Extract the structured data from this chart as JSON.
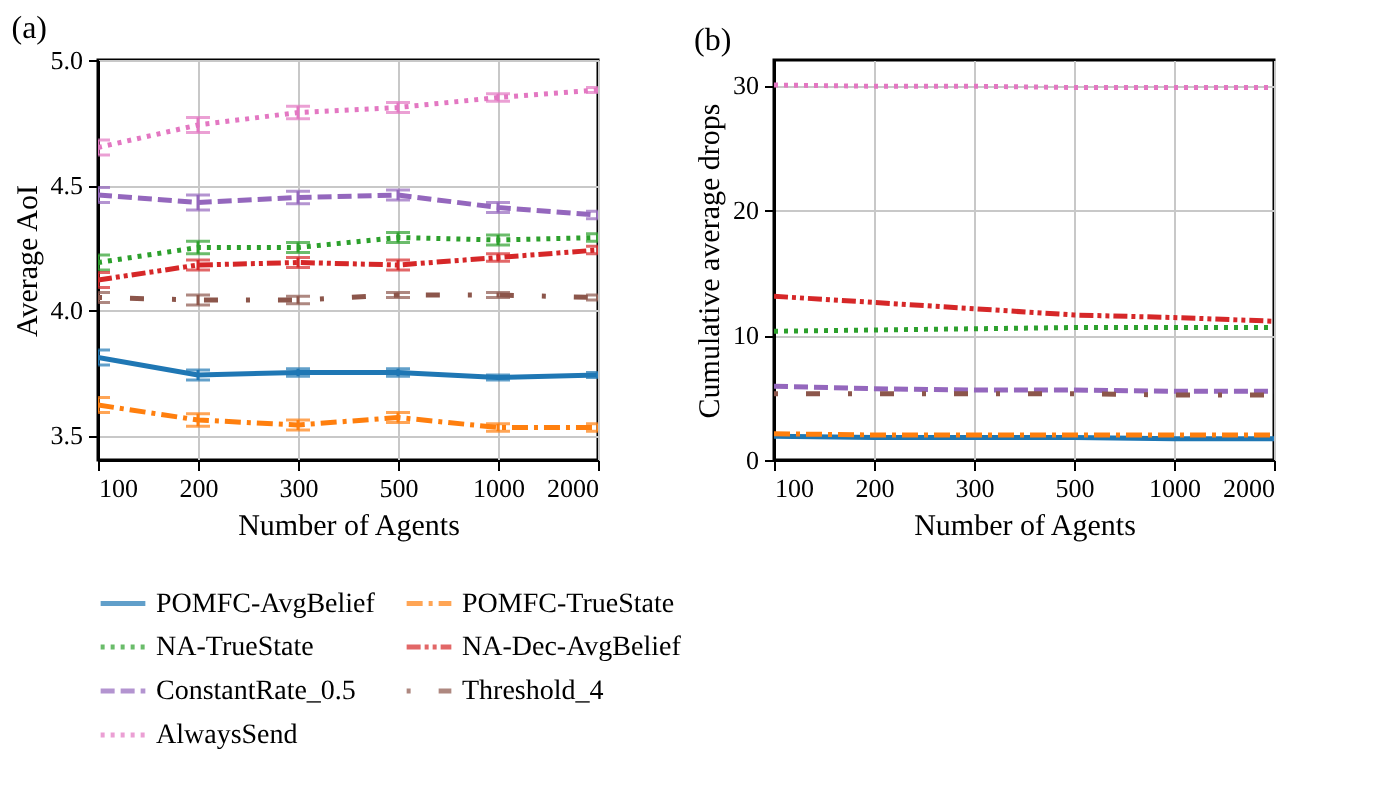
{
  "chart_data": [
    {
      "type": "line",
      "title": "(a)",
      "xlabel": "Number of Agents",
      "ylabel": "Average AoI",
      "categories": [
        "100",
        "200",
        "300",
        "500",
        "1000",
        "2000"
      ],
      "ylim": [
        3.4,
        5.0
      ],
      "yticks": [
        {
          "value": 3.5,
          "label": "3.5"
        },
        {
          "value": 4.0,
          "label": "4.0"
        },
        4.5,
        {
          "value": 5.0,
          "label": "5.0"
        }
      ],
      "grid": true,
      "legend": "bottom",
      "marker": "none",
      "series": [
        {
          "name": "POMFC-AvgBelief",
          "color": "#1f77b4",
          "line_style": "solid",
          "values": [
            3.81,
            3.74,
            3.75,
            3.75,
            3.73,
            3.74
          ],
          "errors": [
            0.03,
            0.02,
            0.015,
            0.015,
            0.01,
            0.01
          ]
        },
        {
          "name": "POMFC-TrueState",
          "color": "#ff7f0e",
          "line_style": "dashdot",
          "values": [
            3.62,
            3.56,
            3.54,
            3.57,
            3.53,
            3.53
          ],
          "errors": [
            0.03,
            0.025,
            0.02,
            0.02,
            0.015,
            0.015
          ]
        },
        {
          "name": "NA-TrueState",
          "color": "#2ca02c",
          "line_style": "dotted",
          "values": [
            4.19,
            4.25,
            4.25,
            4.29,
            4.28,
            4.29
          ],
          "errors": [
            0.03,
            0.025,
            0.02,
            0.02,
            0.02,
            0.015
          ]
        },
        {
          "name": "NA-Dec-AvgBelief",
          "color": "#d62728",
          "line_style": "dashdotdot",
          "values": [
            4.12,
            4.18,
            4.19,
            4.18,
            4.21,
            4.24
          ],
          "errors": [
            0.03,
            0.02,
            0.02,
            0.02,
            0.015,
            0.015
          ]
        },
        {
          "name": "ConstantRate_0.5",
          "color": "#9467bd",
          "line_style": "dashed",
          "values": [
            4.46,
            4.43,
            4.45,
            4.46,
            4.41,
            4.38
          ],
          "errors": [
            0.03,
            0.03,
            0.025,
            0.02,
            0.02,
            0.015
          ]
        },
        {
          "name": "Threshold_4",
          "color": "#8c564b",
          "line_style": "loosedashdot",
          "values": [
            4.05,
            4.04,
            4.04,
            4.06,
            4.06,
            4.05
          ],
          "errors": [
            0.02,
            0.02,
            0.015,
            0.01,
            0.01,
            0.01
          ]
        },
        {
          "name": "AlwaysSend",
          "color": "#e377c2",
          "line_style": "dotted",
          "values": [
            4.65,
            4.74,
            4.79,
            4.81,
            4.85,
            4.88
          ],
          "errors": [
            0.03,
            0.03,
            0.025,
            0.02,
            0.015,
            0.01
          ]
        }
      ]
    },
    {
      "type": "line",
      "title": "(b)",
      "xlabel": "Number of Agents",
      "ylabel": "Cumulative average drops",
      "categories": [
        "100",
        "200",
        "300",
        "500",
        "1000",
        "2000"
      ],
      "ylim": [
        0,
        32
      ],
      "yticks": [
        0,
        10,
        20,
        30
      ],
      "grid": true,
      "marker": "none",
      "series": [
        {
          "name": "POMFC-AvgBelief",
          "color": "#1f77b4",
          "line_style": "solid",
          "values": [
            1.9,
            1.8,
            1.8,
            1.8,
            1.7,
            1.7
          ]
        },
        {
          "name": "POMFC-TrueState",
          "color": "#ff7f0e",
          "line_style": "dashdot",
          "values": [
            2.1,
            2.0,
            2.0,
            2.0,
            2.0,
            2.0
          ]
        },
        {
          "name": "NA-TrueState",
          "color": "#2ca02c",
          "line_style": "dotted",
          "values": [
            10.3,
            10.4,
            10.5,
            10.6,
            10.6,
            10.6
          ]
        },
        {
          "name": "NA-Dec-AvgBelief",
          "color": "#d62728",
          "line_style": "dashdotdot",
          "values": [
            13.1,
            12.6,
            12.1,
            11.6,
            11.4,
            11.1
          ]
        },
        {
          "name": "ConstantRate_0.5",
          "color": "#9467bd",
          "line_style": "dashed",
          "values": [
            5.9,
            5.7,
            5.6,
            5.6,
            5.5,
            5.5
          ]
        },
        {
          "name": "Threshold_4",
          "color": "#8c564b",
          "line_style": "loosedashdot",
          "values": [
            5.3,
            5.3,
            5.3,
            5.3,
            5.2,
            5.2
          ]
        },
        {
          "name": "AlwaysSend",
          "color": "#e377c2",
          "line_style": "dotted",
          "values": [
            30.0,
            29.9,
            29.9,
            29.8,
            29.8,
            29.8
          ]
        }
      ]
    }
  ]
}
